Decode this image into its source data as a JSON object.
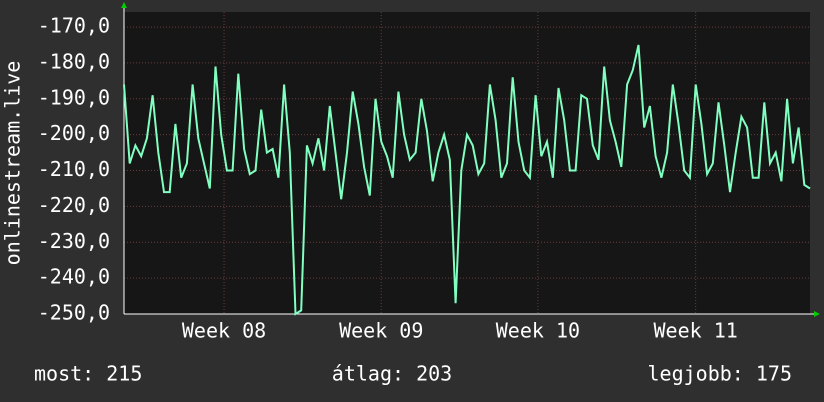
{
  "chart_data": {
    "type": "line",
    "ylabel": "onlinestream.live",
    "values": [
      -186,
      -208,
      -203,
      -206,
      -201,
      -189,
      -205,
      -216,
      -216,
      -197,
      -212,
      -208,
      -186,
      -201,
      -208,
      -215,
      -181,
      -200,
      -210,
      -210,
      -183,
      -204,
      -211,
      -210,
      -193,
      -205,
      -204,
      -212,
      -186,
      -205,
      -250,
      -249,
      -203,
      -208,
      -201,
      -210,
      -192,
      -205,
      -218,
      -205,
      -188,
      -197,
      -209,
      -217,
      -190,
      -202,
      -206,
      -212,
      -188,
      -200,
      -207,
      -205,
      -190,
      -199,
      -213,
      -205,
      -200,
      -207,
      -247,
      -210,
      -200,
      -203,
      -211,
      -208,
      -186,
      -196,
      -212,
      -208,
      -184,
      -202,
      -210,
      -212,
      -189,
      -206,
      -202,
      -212,
      -187,
      -196,
      -210,
      -210,
      -189,
      -190,
      -203,
      -207,
      -181,
      -196,
      -202,
      -209,
      -186,
      -182,
      -175,
      -198,
      -192,
      -206,
      -212,
      -205,
      -186,
      -197,
      -210,
      -212,
      -186,
      -197,
      -211,
      -208,
      -191,
      -203,
      -216,
      -205,
      -195,
      -198,
      -212,
      -212,
      -191,
      -208,
      -205,
      -213,
      -190,
      -208,
      -198,
      -214,
      -215
    ],
    "color": "#80ffc0",
    "xlim": [
      0,
      120
    ],
    "xticks": [
      {
        "value": 17.5,
        "label": "Week 08"
      },
      {
        "value": 45,
        "label": "Week 09"
      },
      {
        "value": 72.4,
        "label": "Week 10"
      },
      {
        "value": 100,
        "label": "Week 11"
      }
    ],
    "ylim": [
      -250,
      -165.8
    ],
    "yticks": [
      {
        "value": -250,
        "label": "-250,0"
      },
      {
        "value": -240,
        "label": "-240,0"
      },
      {
        "value": -230,
        "label": "-230,0"
      },
      {
        "value": -220,
        "label": "-220,0"
      },
      {
        "value": -210,
        "label": "-210,0"
      },
      {
        "value": -200,
        "label": "-200,0"
      },
      {
        "value": -190,
        "label": "-190,0"
      },
      {
        "value": -180,
        "label": "-180,0"
      },
      {
        "value": -170,
        "label": "-170,0"
      }
    ],
    "grid": true,
    "stats": [
      "most: 215",
      "átlag: 203",
      "legjobb: 175"
    ]
  }
}
